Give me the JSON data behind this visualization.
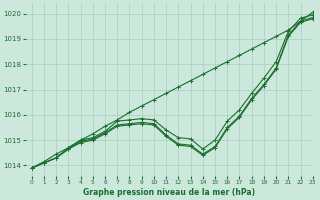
{
  "title": "Graphe pression niveau de la mer (hPa)",
  "bg_color": "#cce8dc",
  "grid_color": "#aacfbf",
  "line_color": "#1a6e2e",
  "xmin": -0.5,
  "xmax": 23,
  "ymin": 1013.6,
  "ymax": 1020.4,
  "yticks": [
    1014,
    1015,
    1016,
    1017,
    1018,
    1019,
    1020
  ],
  "xticks": [
    0,
    1,
    2,
    3,
    4,
    5,
    6,
    7,
    8,
    9,
    10,
    11,
    12,
    13,
    14,
    15,
    16,
    17,
    18,
    19,
    20,
    21,
    22,
    23
  ],
  "line_straight": [
    1013.9,
    1014.15,
    1014.45,
    1014.7,
    1015.0,
    1015.25,
    1015.55,
    1015.8,
    1016.1,
    1016.35,
    1016.6,
    1016.85,
    1017.1,
    1017.35,
    1017.6,
    1017.85,
    1018.1,
    1018.35,
    1018.6,
    1018.85,
    1019.1,
    1019.35,
    1019.7,
    1020.05
  ],
  "line_dip1": [
    1013.9,
    1014.1,
    1014.3,
    1014.65,
    1014.9,
    1015.0,
    1015.25,
    1015.55,
    1015.6,
    1015.65,
    1015.6,
    1015.15,
    1014.8,
    1014.75,
    1014.4,
    1014.7,
    1015.45,
    1015.9,
    1016.6,
    1017.15,
    1017.8,
    1019.1,
    1019.65,
    1019.8
  ],
  "line_dip2": [
    1013.9,
    1014.1,
    1014.3,
    1014.65,
    1014.95,
    1015.05,
    1015.3,
    1015.6,
    1015.65,
    1015.7,
    1015.65,
    1015.2,
    1014.85,
    1014.8,
    1014.45,
    1014.75,
    1015.5,
    1015.95,
    1016.65,
    1017.2,
    1017.85,
    1019.15,
    1019.7,
    1019.85
  ],
  "line_dip3": [
    1013.9,
    1014.1,
    1014.3,
    1014.7,
    1015.0,
    1015.1,
    1015.35,
    1015.75,
    1015.8,
    1015.85,
    1015.8,
    1015.4,
    1015.1,
    1015.05,
    1014.65,
    1015.0,
    1015.75,
    1016.2,
    1016.85,
    1017.45,
    1018.1,
    1019.3,
    1019.82,
    1019.95
  ]
}
